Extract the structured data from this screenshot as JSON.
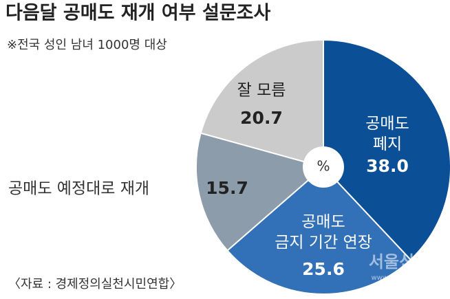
{
  "chart_data": {
    "type": "donut",
    "title": "다음달 공매도 재개 여부 설문조사",
    "subtitle": "※전국 성인 남녀 1000명 대상",
    "source": "〈자료 : 경제정의실천시민연합〉",
    "unit": "%",
    "watermark": "서울신문",
    "watermark_url": "www.seoul.co.kr",
    "categories": [
      "공매도\n폐지",
      "공매도\n금지 기간 연장",
      "공매도 예정대로 재개",
      "잘 모름"
    ],
    "values": [
      38.0,
      25.6,
      15.7,
      20.7
    ],
    "value_labels": [
      "38.0",
      "25.6",
      "15.7",
      "20.7"
    ],
    "colors": [
      "#0b4f97",
      "#3270b8",
      "#8d9cab",
      "#cbcbcb"
    ]
  }
}
